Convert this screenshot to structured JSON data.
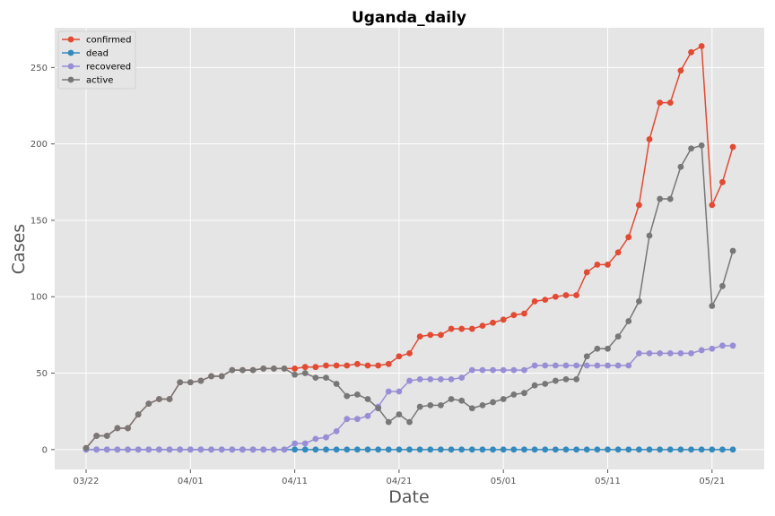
{
  "chart_data": {
    "type": "line",
    "title": "Uganda_daily",
    "xlabel": "Date",
    "ylabel": "Cases",
    "start_date": "03/22",
    "x_tick_labels": [
      "03/22",
      "04/01",
      "04/11",
      "04/21",
      "05/01",
      "05/11",
      "05/21"
    ],
    "y_ticks": [
      0,
      50,
      100,
      150,
      200,
      250
    ],
    "ylim": [
      -13,
      276
    ],
    "grid": true,
    "legend_position": "top-left",
    "series": [
      {
        "name": "confirmed",
        "color": "#e24a33",
        "values": [
          1,
          9,
          9,
          14,
          14,
          23,
          30,
          33,
          33,
          44,
          44,
          45,
          48,
          48,
          52,
          52,
          52,
          53,
          53,
          53,
          53,
          54,
          54,
          55,
          55,
          55,
          56,
          55,
          55,
          56,
          61,
          63,
          74,
          75,
          75,
          79,
          79,
          79,
          81,
          83,
          85,
          88,
          89,
          97,
          98,
          100,
          101,
          101,
          116,
          121,
          121,
          129,
          139,
          160,
          203,
          227,
          227,
          248,
          260,
          264,
          160,
          175,
          198
        ]
      },
      {
        "name": "dead",
        "color": "#348abd",
        "values": [
          0,
          0,
          0,
          0,
          0,
          0,
          0,
          0,
          0,
          0,
          0,
          0,
          0,
          0,
          0,
          0,
          0,
          0,
          0,
          0,
          0,
          0,
          0,
          0,
          0,
          0,
          0,
          0,
          0,
          0,
          0,
          0,
          0,
          0,
          0,
          0,
          0,
          0,
          0,
          0,
          0,
          0,
          0,
          0,
          0,
          0,
          0,
          0,
          0,
          0,
          0,
          0,
          0,
          0,
          0,
          0,
          0,
          0,
          0,
          0,
          0,
          0,
          0
        ]
      },
      {
        "name": "recovered",
        "color": "#988ed5",
        "values": [
          0,
          0,
          0,
          0,
          0,
          0,
          0,
          0,
          0,
          0,
          0,
          0,
          0,
          0,
          0,
          0,
          0,
          0,
          0,
          0,
          4,
          4,
          7,
          8,
          12,
          20,
          20,
          22,
          28,
          38,
          38,
          45,
          46,
          46,
          46,
          46,
          47,
          52,
          52,
          52,
          52,
          52,
          52,
          55,
          55,
          55,
          55,
          55,
          55,
          55,
          55,
          55,
          55,
          63,
          63,
          63,
          63,
          63,
          63,
          65,
          66,
          68,
          68
        ]
      },
      {
        "name": "active",
        "color": "#777777",
        "values": [
          1,
          9,
          9,
          14,
          14,
          23,
          30,
          33,
          33,
          44,
          44,
          45,
          48,
          48,
          52,
          52,
          52,
          53,
          53,
          53,
          49,
          50,
          47,
          47,
          43,
          35,
          36,
          33,
          27,
          18,
          23,
          18,
          28,
          29,
          29,
          33,
          32,
          27,
          29,
          31,
          33,
          36,
          37,
          42,
          43,
          45,
          46,
          46,
          61,
          66,
          66,
          74,
          84,
          97,
          140,
          164,
          164,
          185,
          197,
          199,
          94,
          107,
          130
        ]
      }
    ]
  }
}
